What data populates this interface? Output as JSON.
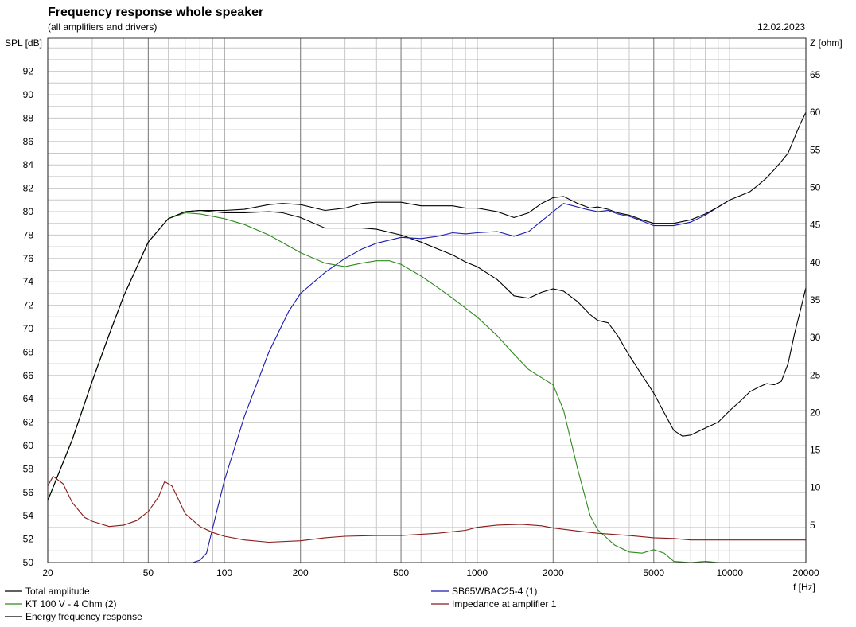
{
  "chart_data": {
    "type": "line",
    "title": "Frequency response whole speaker",
    "subtitle": "(all amplifiers and drivers)",
    "date": "12.02.2023",
    "xlabel": "f [Hz]",
    "ylabel": "SPL [dB]",
    "y2label": "Z [ohm]",
    "xscale": "log",
    "xlim": [
      20,
      20000
    ],
    "ylim": [
      50,
      94
    ],
    "y2lim": [
      0,
      70
    ],
    "grid": true,
    "legend_position": "bottom",
    "x_ticks": [
      "20",
      "50",
      "100",
      "200",
      "500",
      "1000",
      "2000",
      "5000",
      "10000",
      "20000"
    ],
    "y_ticks": [
      "50",
      "52",
      "54",
      "56",
      "58",
      "60",
      "62",
      "64",
      "66",
      "68",
      "70",
      "72",
      "74",
      "76",
      "78",
      "80",
      "82",
      "84",
      "86",
      "88",
      "90",
      "92"
    ],
    "y2_ticks": [
      "5",
      "10",
      "15",
      "20",
      "25",
      "30",
      "35",
      "40",
      "45",
      "50",
      "55",
      "60",
      "65"
    ],
    "series": [
      {
        "name": "Total amplitude",
        "axis": "left",
        "color": "#000000",
        "points": [
          [
            20,
            55.3
          ],
          [
            25,
            60.5
          ],
          [
            30,
            65.5
          ],
          [
            35,
            69.5
          ],
          [
            40,
            72.8
          ],
          [
            50,
            77.4
          ],
          [
            60,
            79.4
          ],
          [
            70,
            80.0
          ],
          [
            80,
            80.1
          ],
          [
            90,
            80.0
          ],
          [
            100,
            79.9
          ],
          [
            120,
            79.9
          ],
          [
            150,
            80.0
          ],
          [
            170,
            79.9
          ],
          [
            200,
            79.5
          ],
          [
            250,
            78.6
          ],
          [
            300,
            78.6
          ],
          [
            350,
            78.6
          ],
          [
            400,
            78.5
          ],
          [
            500,
            78.0
          ],
          [
            600,
            77.4
          ],
          [
            700,
            76.8
          ],
          [
            800,
            76.3
          ],
          [
            900,
            75.7
          ],
          [
            1000,
            75.3
          ],
          [
            1200,
            74.2
          ],
          [
            1400,
            72.8
          ],
          [
            1600,
            72.6
          ],
          [
            1800,
            73.1
          ],
          [
            2000,
            73.4
          ],
          [
            2200,
            73.2
          ],
          [
            2500,
            72.3
          ],
          [
            2800,
            71.2
          ],
          [
            3000,
            70.7
          ],
          [
            3300,
            70.5
          ],
          [
            3600,
            69.4
          ],
          [
            4000,
            67.7
          ],
          [
            4500,
            66.0
          ],
          [
            5000,
            64.5
          ],
          [
            5500,
            62.8
          ],
          [
            6000,
            61.3
          ],
          [
            6500,
            60.8
          ],
          [
            7000,
            60.9
          ],
          [
            8000,
            61.5
          ],
          [
            9000,
            62.0
          ],
          [
            10000,
            63.0
          ],
          [
            11000,
            63.8
          ],
          [
            12000,
            64.6
          ],
          [
            13000,
            65.0
          ],
          [
            14000,
            65.3
          ],
          [
            15000,
            65.2
          ],
          [
            16000,
            65.5
          ],
          [
            17000,
            67.0
          ],
          [
            18000,
            69.5
          ],
          [
            19000,
            71.5
          ],
          [
            20000,
            73.5
          ]
        ]
      },
      {
        "name": "SB65WBAC25-4 (1)",
        "axis": "left",
        "color": "#1a1ab0",
        "points": [
          [
            20,
            50.0
          ],
          [
            75,
            50.0
          ],
          [
            80,
            50.2
          ],
          [
            85,
            50.8
          ],
          [
            90,
            53.0
          ],
          [
            100,
            57.0
          ],
          [
            120,
            62.5
          ],
          [
            150,
            68.0
          ],
          [
            180,
            71.5
          ],
          [
            200,
            73.0
          ],
          [
            250,
            74.8
          ],
          [
            300,
            76.0
          ],
          [
            350,
            76.8
          ],
          [
            400,
            77.3
          ],
          [
            500,
            77.8
          ],
          [
            600,
            77.7
          ],
          [
            700,
            77.9
          ],
          [
            800,
            78.2
          ],
          [
            900,
            78.1
          ],
          [
            1000,
            78.2
          ],
          [
            1200,
            78.3
          ],
          [
            1400,
            77.9
          ],
          [
            1600,
            78.3
          ],
          [
            1800,
            79.2
          ],
          [
            2000,
            80.0
          ],
          [
            2200,
            80.7
          ],
          [
            2400,
            80.5
          ],
          [
            2700,
            80.2
          ],
          [
            3000,
            80.0
          ],
          [
            3300,
            80.1
          ],
          [
            3600,
            79.8
          ],
          [
            4000,
            79.6
          ],
          [
            4500,
            79.2
          ],
          [
            5000,
            78.8
          ],
          [
            6000,
            78.8
          ],
          [
            7000,
            79.1
          ],
          [
            8000,
            79.7
          ],
          [
            9000,
            80.4
          ],
          [
            10000,
            81.0
          ]
        ]
      },
      {
        "name": "KT 100 V - 4 Ohm (2)",
        "axis": "left",
        "color": "#2e8b1c",
        "points": [
          [
            20,
            55.3
          ],
          [
            25,
            60.5
          ],
          [
            30,
            65.5
          ],
          [
            35,
            69.5
          ],
          [
            40,
            72.8
          ],
          [
            50,
            77.4
          ],
          [
            60,
            79.4
          ],
          [
            70,
            79.9
          ],
          [
            80,
            79.8
          ],
          [
            90,
            79.6
          ],
          [
            100,
            79.4
          ],
          [
            120,
            78.9
          ],
          [
            150,
            78.0
          ],
          [
            200,
            76.5
          ],
          [
            250,
            75.6
          ],
          [
            300,
            75.3
          ],
          [
            350,
            75.6
          ],
          [
            400,
            75.8
          ],
          [
            450,
            75.8
          ],
          [
            500,
            75.5
          ],
          [
            600,
            74.5
          ],
          [
            700,
            73.5
          ],
          [
            800,
            72.6
          ],
          [
            1000,
            71.0
          ],
          [
            1200,
            69.4
          ],
          [
            1400,
            67.8
          ],
          [
            1600,
            66.5
          ],
          [
            1800,
            65.8
          ],
          [
            2000,
            65.2
          ],
          [
            2200,
            63.0
          ],
          [
            2500,
            58.0
          ],
          [
            2800,
            54.0
          ],
          [
            3000,
            52.8
          ],
          [
            3500,
            51.5
          ],
          [
            4000,
            50.9
          ],
          [
            4500,
            50.8
          ],
          [
            5000,
            51.1
          ],
          [
            5500,
            50.8
          ],
          [
            6000,
            50.1
          ],
          [
            7000,
            50.0
          ],
          [
            8000,
            50.1
          ],
          [
            9000,
            50.0
          ],
          [
            20000,
            50.0
          ]
        ]
      },
      {
        "name": "Energy frequency response",
        "axis": "left",
        "color": "#000000",
        "points": [
          [
            20,
            55.3
          ],
          [
            25,
            60.5
          ],
          [
            30,
            65.5
          ],
          [
            35,
            69.5
          ],
          [
            40,
            72.8
          ],
          [
            50,
            77.4
          ],
          [
            60,
            79.4
          ],
          [
            70,
            80.0
          ],
          [
            80,
            80.1
          ],
          [
            90,
            80.1
          ],
          [
            100,
            80.1
          ],
          [
            120,
            80.2
          ],
          [
            150,
            80.6
          ],
          [
            170,
            80.7
          ],
          [
            200,
            80.6
          ],
          [
            250,
            80.1
          ],
          [
            300,
            80.3
          ],
          [
            350,
            80.7
          ],
          [
            400,
            80.8
          ],
          [
            500,
            80.8
          ],
          [
            600,
            80.5
          ],
          [
            700,
            80.5
          ],
          [
            800,
            80.5
          ],
          [
            900,
            80.3
          ],
          [
            1000,
            80.3
          ],
          [
            1200,
            80.0
          ],
          [
            1400,
            79.5
          ],
          [
            1600,
            79.9
          ],
          [
            1800,
            80.7
          ],
          [
            2000,
            81.2
          ],
          [
            2200,
            81.3
          ],
          [
            2500,
            80.7
          ],
          [
            2800,
            80.3
          ],
          [
            3000,
            80.4
          ],
          [
            3300,
            80.2
          ],
          [
            3600,
            79.9
          ],
          [
            4000,
            79.7
          ],
          [
            4500,
            79.3
          ],
          [
            5000,
            79.0
          ],
          [
            6000,
            79.0
          ],
          [
            7000,
            79.3
          ],
          [
            8000,
            79.8
          ],
          [
            9000,
            80.4
          ],
          [
            10000,
            81.0
          ],
          [
            12000,
            81.7
          ],
          [
            13000,
            82.3
          ],
          [
            14000,
            82.9
          ],
          [
            15000,
            83.6
          ],
          [
            16000,
            84.3
          ],
          [
            17000,
            85.0
          ],
          [
            18000,
            86.3
          ],
          [
            19000,
            87.5
          ],
          [
            20000,
            88.5
          ],
          [
            21000,
            89.8
          ],
          [
            22000,
            91.0
          ]
        ]
      },
      {
        "name": "Impedance at amplifier 1",
        "axis": "right",
        "color": "#8b1a1a",
        "points": [
          [
            20,
            10.2
          ],
          [
            21,
            11.5
          ],
          [
            23,
            10.5
          ],
          [
            25,
            8.0
          ],
          [
            28,
            6.0
          ],
          [
            30,
            5.5
          ],
          [
            35,
            4.8
          ],
          [
            40,
            5.0
          ],
          [
            45,
            5.6
          ],
          [
            50,
            6.8
          ],
          [
            55,
            8.8
          ],
          [
            58,
            10.8
          ],
          [
            62,
            10.2
          ],
          [
            65,
            8.8
          ],
          [
            70,
            6.5
          ],
          [
            80,
            4.8
          ],
          [
            90,
            4.0
          ],
          [
            100,
            3.5
          ],
          [
            120,
            3.0
          ],
          [
            150,
            2.7
          ],
          [
            200,
            2.9
          ],
          [
            250,
            3.3
          ],
          [
            300,
            3.5
          ],
          [
            400,
            3.6
          ],
          [
            500,
            3.6
          ],
          [
            700,
            3.9
          ],
          [
            900,
            4.3
          ],
          [
            1000,
            4.7
          ],
          [
            1200,
            5.0
          ],
          [
            1500,
            5.1
          ],
          [
            1800,
            4.9
          ],
          [
            2000,
            4.6
          ],
          [
            2500,
            4.2
          ],
          [
            3000,
            3.9
          ],
          [
            4000,
            3.6
          ],
          [
            5000,
            3.3
          ],
          [
            6000,
            3.2
          ],
          [
            7000,
            3.0
          ],
          [
            10000,
            3.0
          ],
          [
            20000,
            3.0
          ]
        ]
      }
    ]
  }
}
